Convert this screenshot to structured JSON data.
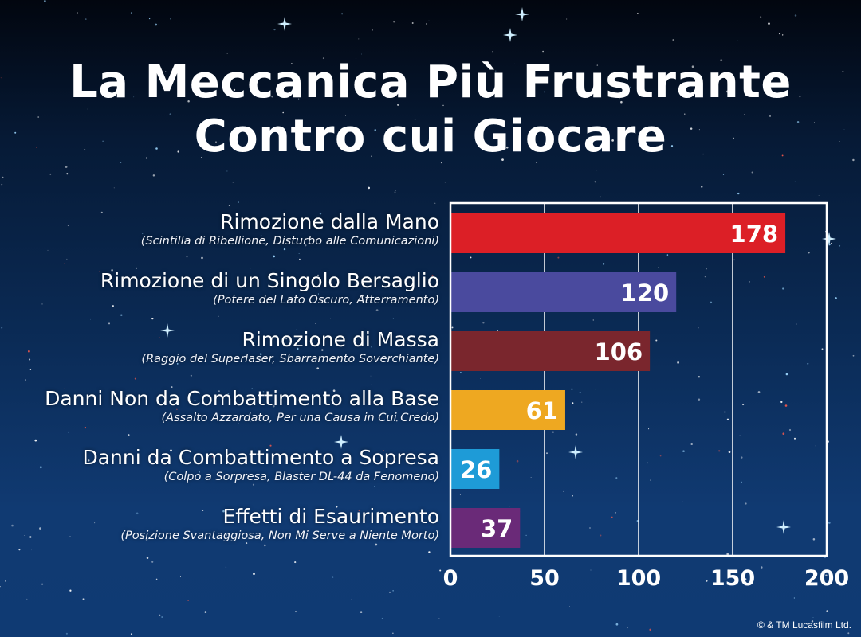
{
  "title_line1": "La Meccanica Più Frustrante",
  "title_line2": "Contro cui Giocare",
  "copyright": "© & TM Lucasfilm Ltd.",
  "chart_data": {
    "type": "bar",
    "orientation": "horizontal",
    "title": "La Meccanica Più Frustrante Contro cui Giocare",
    "xlim": [
      0,
      200
    ],
    "xticks": [
      0,
      50,
      100,
      150,
      200
    ],
    "grid": true,
    "categories": [
      {
        "label": "Rimozione dalla Mano",
        "sublabel": "(Scintilla di Ribellione, Disturbo alle Comunicazioni)",
        "value": 178,
        "color": "#dc1f26"
      },
      {
        "label": "Rimozione di un Singolo Bersaglio",
        "sublabel": "(Potere del Lato Oscuro, Atterramento)",
        "value": 120,
        "color": "#4a4a9e"
      },
      {
        "label": "Rimozione di Massa",
        "sublabel": "(Raggio del Superlaser, Sbarramento Soverchiante)",
        "value": 106,
        "color": "#7a262d"
      },
      {
        "label": "Danni Non da Combattimento alla Base",
        "sublabel": "(Assalto Azzardato, Per una Causa in Cui Credo)",
        "value": 61,
        "color": "#eea821"
      },
      {
        "label": "Danni da Combattimento a Sopresa",
        "sublabel": "(Colpo a Sorpresa, Blaster DL-44 da Fenomeno)",
        "value": 26,
        "color": "#1e9bd7"
      },
      {
        "label": "Effetti di Esaurimento",
        "sublabel": "(Posizione Svantaggiosa, Non Mi Serve a Niente Morto)",
        "value": 37,
        "color": "#6a2a78"
      }
    ]
  }
}
